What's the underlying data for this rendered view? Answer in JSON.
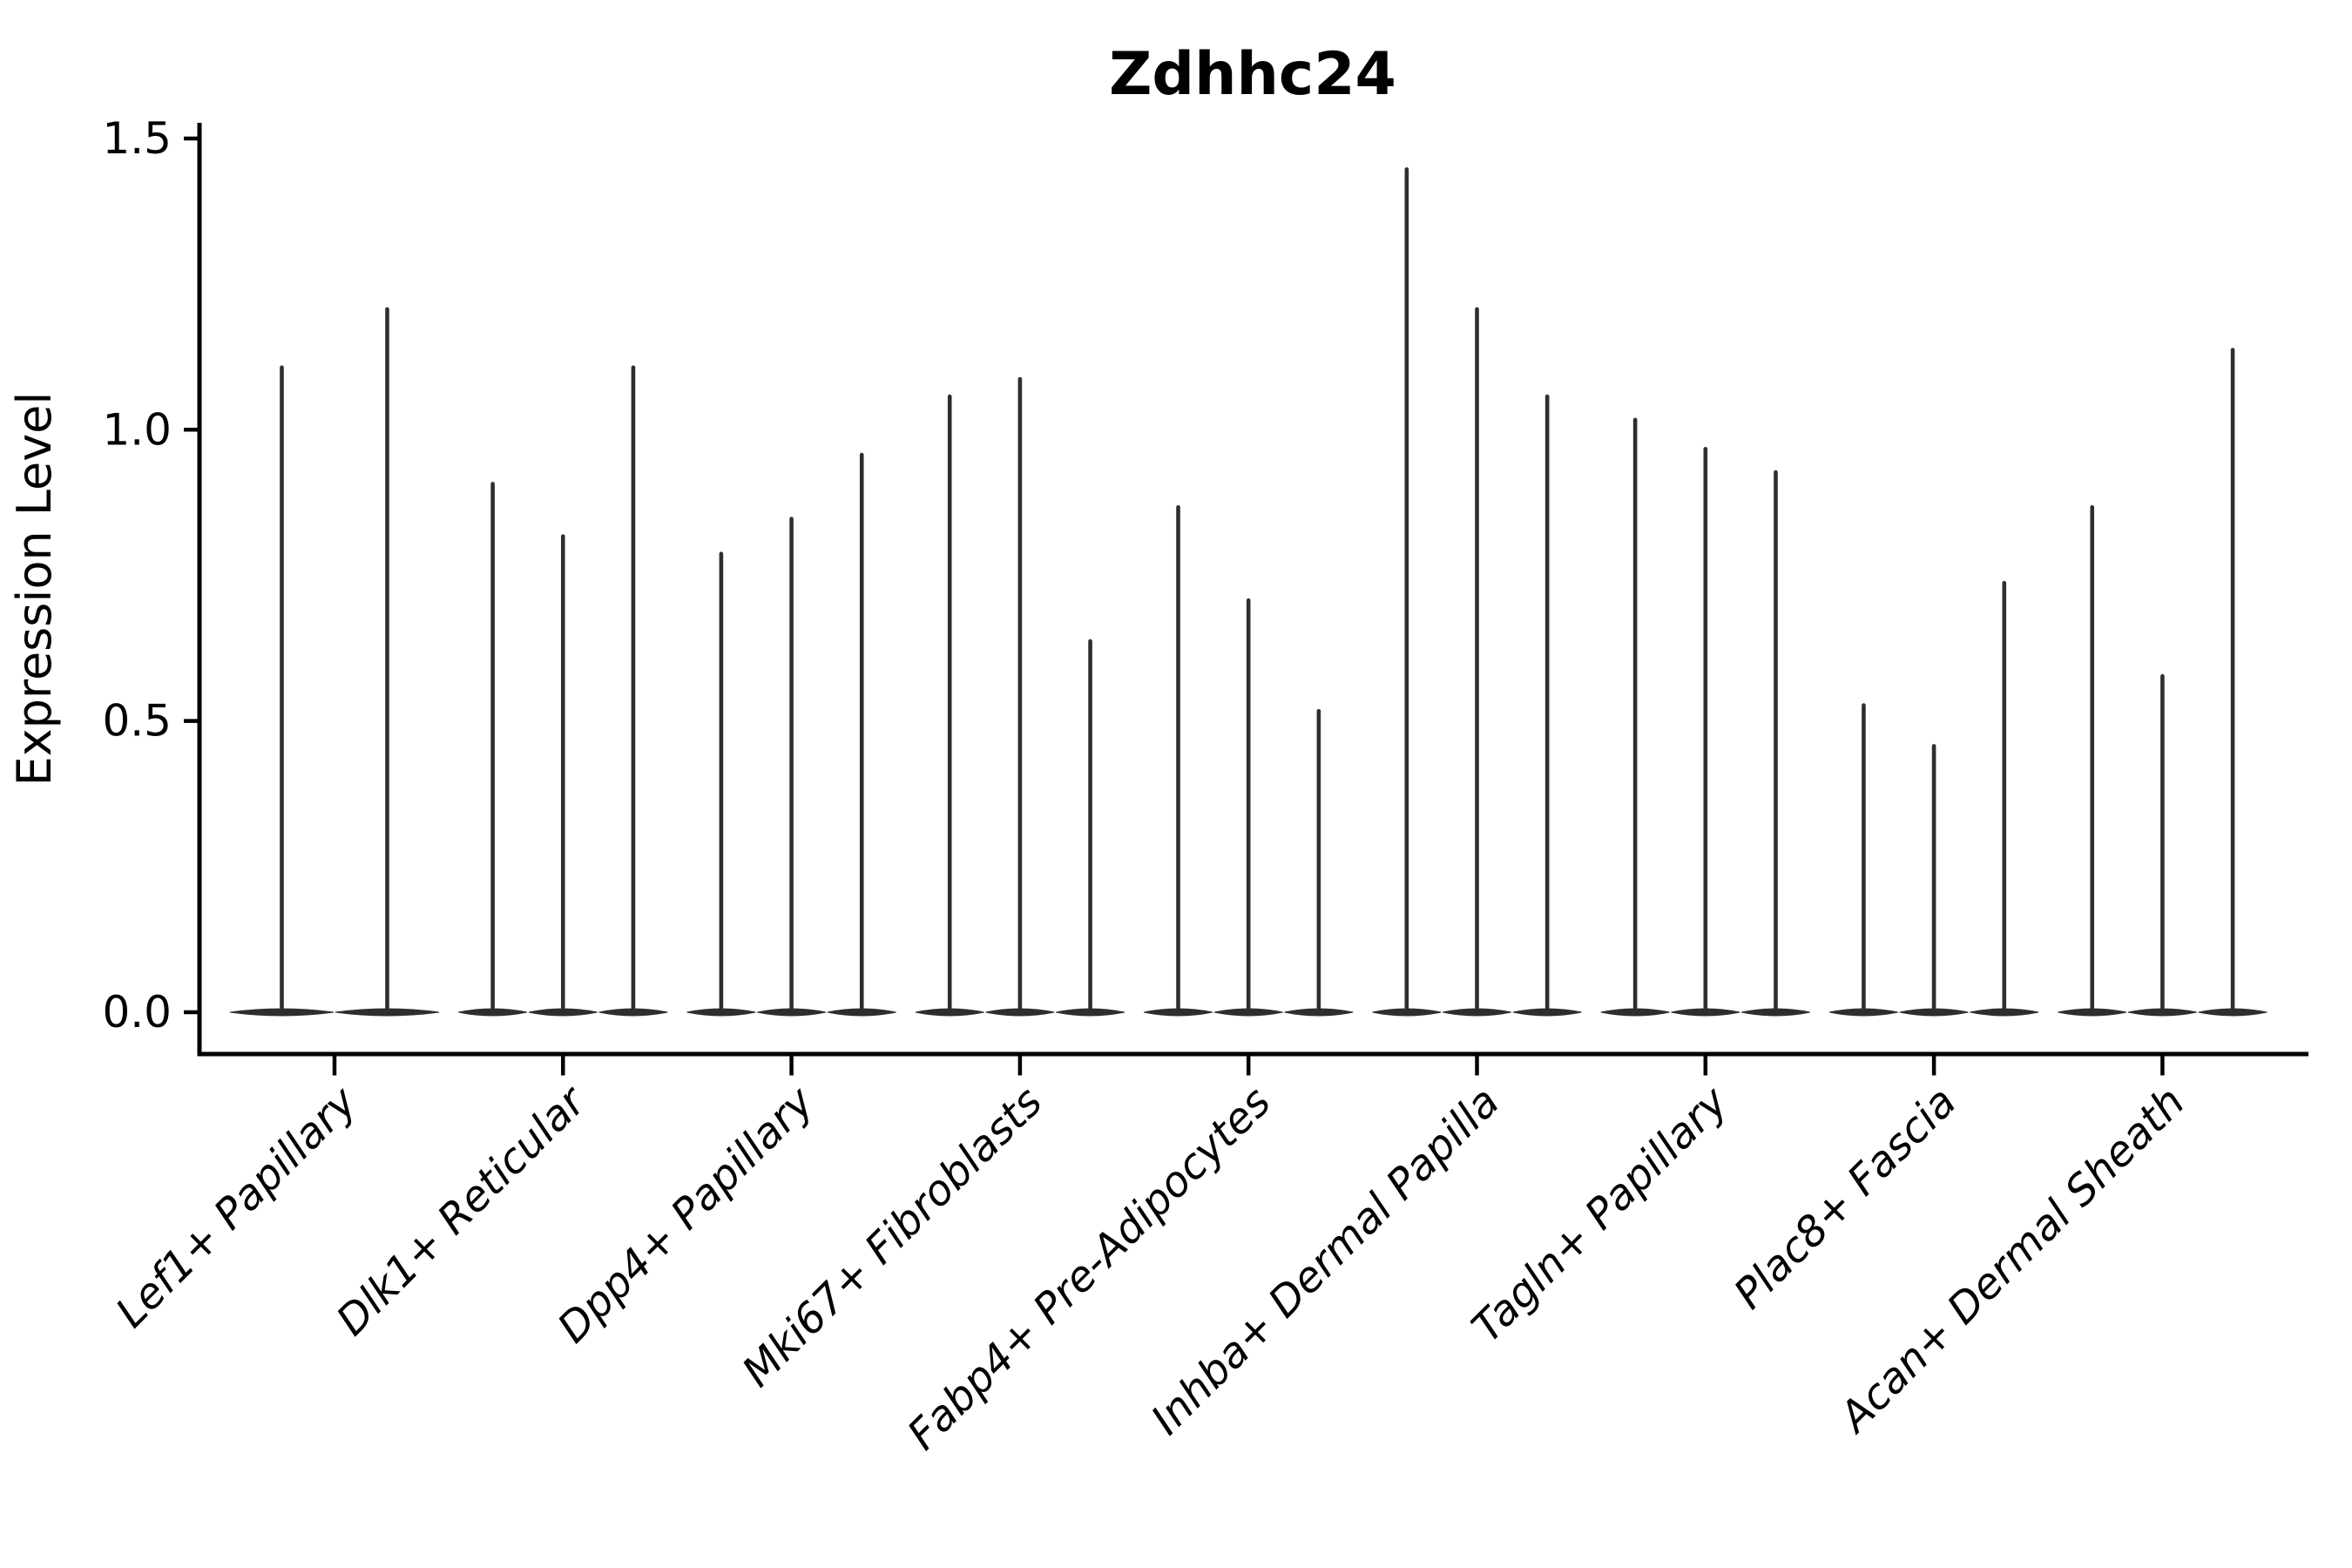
{
  "title": "Zdhhc24",
  "axes": {
    "y_label": "Expression Level"
  },
  "chart_data": {
    "type": "violin",
    "title": "Zdhhc24",
    "ylabel": "Expression Level",
    "xlabel": "",
    "ylim": [
      0,
      1.527
    ],
    "y_tick_values": [
      0.0,
      0.5,
      1.0,
      1.5
    ],
    "y_tick_labels": [
      "0.0",
      "0.5",
      "1.0",
      "1.5"
    ],
    "x_tick_rotation": 45,
    "grid": false,
    "legend": false,
    "description": "Needle-thin violins (zero-inflated expression): wide flat base at 0, thin spike to max expression. Group 1 has 2 violins, all other groups have 3.",
    "categories": [
      "Lef1+ Papillary",
      "Dlk1+ Reticular",
      "Dpp4+ Papillary",
      "Mki67+ Fibroblasts",
      "Fabp4+ Pre-Adipocytes",
      "Inhba+ Dermal Papilla",
      "Tagln+ Papillary",
      "Plac8+ Fascia",
      "Acan+ Dermal Sheath"
    ],
    "series": [
      {
        "name": "Lef1+ Papillary",
        "values": [
          1.11,
          1.21
        ]
      },
      {
        "name": "Dlk1+ Reticular",
        "values": [
          0.91,
          0.82,
          1.11
        ]
      },
      {
        "name": "Dpp4+ Papillary",
        "values": [
          0.79,
          0.85,
          0.96
        ]
      },
      {
        "name": "Mki67+ Fibroblasts",
        "values": [
          1.06,
          1.09,
          0.64
        ]
      },
      {
        "name": "Fabp4+ Pre-Adipocytes",
        "values": [
          0.87,
          0.71,
          0.52
        ]
      },
      {
        "name": "Inhba+ Dermal Papilla",
        "values": [
          1.45,
          1.21,
          1.06
        ]
      },
      {
        "name": "Tagln+ Papillary",
        "values": [
          1.02,
          0.97,
          0.93
        ]
      },
      {
        "name": "Plac8+ Fascia",
        "values": [
          0.53,
          0.46,
          0.74
        ]
      },
      {
        "name": "Acan+ Dermal Sheath",
        "values": [
          0.87,
          0.58,
          1.14
        ]
      }
    ]
  },
  "colors": {
    "violin": "#2e2e2e",
    "axis": "#000000",
    "text": "#000000",
    "background": "#ffffff"
  }
}
